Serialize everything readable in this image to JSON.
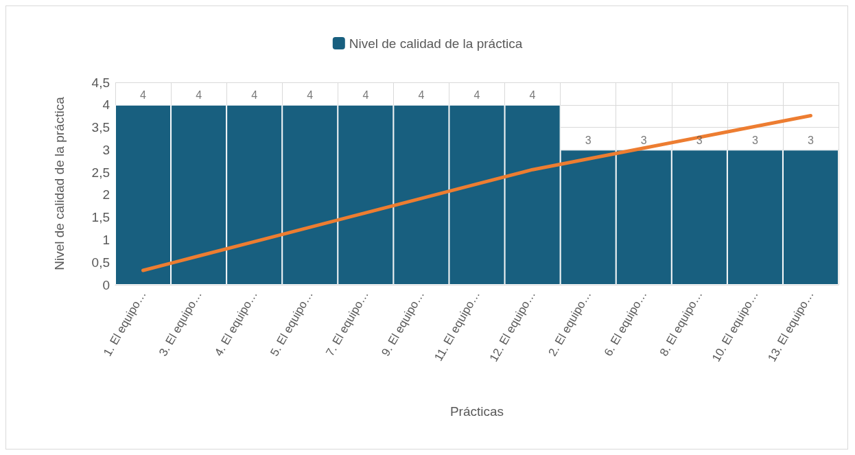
{
  "chart_data": {
    "type": "bar",
    "xlabel": "Prácticas",
    "ylabel": "Nivel de calidad de la práctica",
    "categories": [
      "1. El equipo…",
      "3. El equipo…",
      "4. El equipo…",
      "5. El equipo…",
      "7. El equipo…",
      "9. El equipo…",
      "11. El equipo…",
      "12. El equipo…",
      "2. El equipo…",
      "6. El equipo…",
      "8. El equipo…",
      "10. El equipo…",
      "13. El equipo…"
    ],
    "series": [
      {
        "name": "Nivel de calidad de la práctica",
        "color": "#185f7f",
        "values": [
          4,
          4,
          4,
          4,
          4,
          4,
          4,
          4,
          3,
          3,
          3,
          3,
          3
        ],
        "value_labels": [
          "4",
          "4",
          "4",
          "4",
          "4",
          "4",
          "4",
          "4",
          "3",
          "3",
          "3",
          "3",
          "3"
        ]
      },
      {
        "type": "line",
        "color": "#ed7d31",
        "values": [
          0.32,
          0.64,
          0.96,
          1.28,
          1.6,
          1.92,
          2.24,
          2.56,
          2.8,
          3.04,
          3.28,
          3.52,
          3.76
        ]
      }
    ],
    "ylim": [
      0,
      4.5
    ],
    "yticks": [
      0,
      {
        "value": 0.5,
        "label": "0,5"
      },
      1,
      {
        "value": 1.5,
        "label": "1,5"
      },
      2,
      {
        "value": 2.5,
        "label": "2,5"
      },
      3,
      {
        "value": 3.5,
        "label": "3,5"
      },
      4,
      {
        "value": 4.5,
        "label": "4,5"
      }
    ],
    "grid": true,
    "legend": "top",
    "marker": "none",
    "line_style": "solid"
  }
}
